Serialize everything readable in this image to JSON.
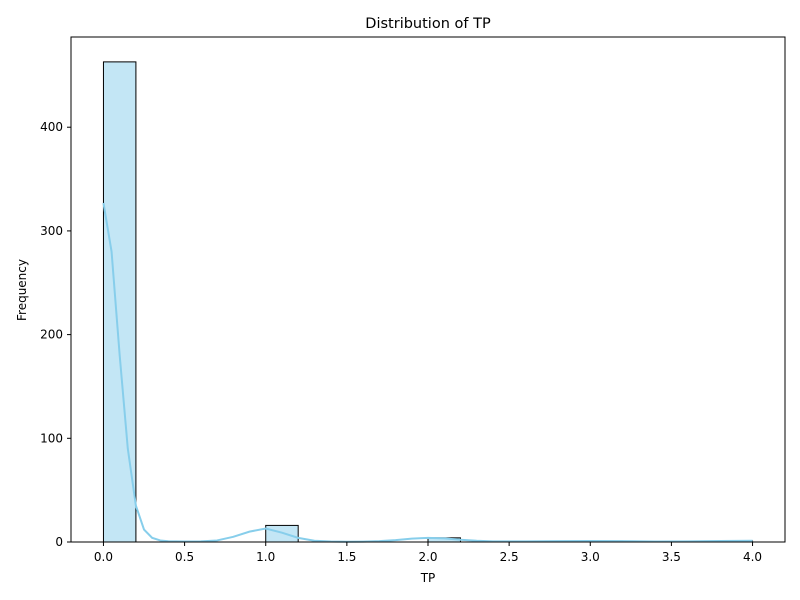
{
  "chart_data": {
    "type": "bar",
    "title": "Distribution of TP",
    "xlabel": "TP",
    "ylabel": "Frequency",
    "xlim": [
      -0.2,
      4.2
    ],
    "ylim": [
      0,
      487
    ],
    "xticks": [
      0.0,
      0.5,
      1.0,
      1.5,
      2.0,
      2.5,
      3.0,
      3.5,
      4.0
    ],
    "xtick_labels": [
      "0.0",
      "0.5",
      "1.0",
      "1.5",
      "2.0",
      "2.5",
      "3.0",
      "3.5",
      "4.0"
    ],
    "yticks": [
      0,
      100,
      200,
      300,
      400
    ],
    "ytick_labels": [
      "0",
      "100",
      "200",
      "300",
      "400"
    ],
    "grid": false,
    "bins": [
      {
        "x0": 0.0,
        "x1": 0.2,
        "count": 463
      },
      {
        "x0": 1.0,
        "x1": 1.2,
        "count": 16
      },
      {
        "x0": 2.0,
        "x1": 2.2,
        "count": 4
      },
      {
        "x0": 3.0,
        "x1": 3.2,
        "count": 1
      },
      {
        "x0": 3.8,
        "x1": 4.0,
        "count": 1
      }
    ],
    "kde": {
      "x": [
        0.0,
        0.05,
        0.1,
        0.15,
        0.2,
        0.25,
        0.3,
        0.35,
        0.4,
        0.5,
        0.6,
        0.7,
        0.8,
        0.9,
        1.0,
        1.1,
        1.2,
        1.3,
        1.4,
        1.5,
        1.6,
        1.7,
        1.8,
        1.9,
        2.0,
        2.1,
        2.2,
        2.3,
        2.4,
        2.6,
        2.8,
        3.0,
        3.2,
        3.4,
        3.6,
        3.8,
        4.0
      ],
      "y": [
        327,
        280,
        180,
        90,
        35,
        12,
        4,
        1.5,
        0.7,
        0.5,
        0.6,
        1.5,
        5,
        10,
        13,
        9,
        4,
        1.2,
        0.5,
        0.3,
        0.4,
        0.8,
        1.8,
        3.2,
        4,
        3.5,
        2.2,
        1.2,
        0.6,
        0.6,
        0.8,
        1.0,
        0.8,
        0.5,
        0.6,
        1.0,
        1.2
      ]
    },
    "colors": {
      "bar_fill": "#87ceeb",
      "bar_fill_opacity": 0.5,
      "bar_edge": "#000000",
      "kde_line": "#87ceeb"
    }
  }
}
